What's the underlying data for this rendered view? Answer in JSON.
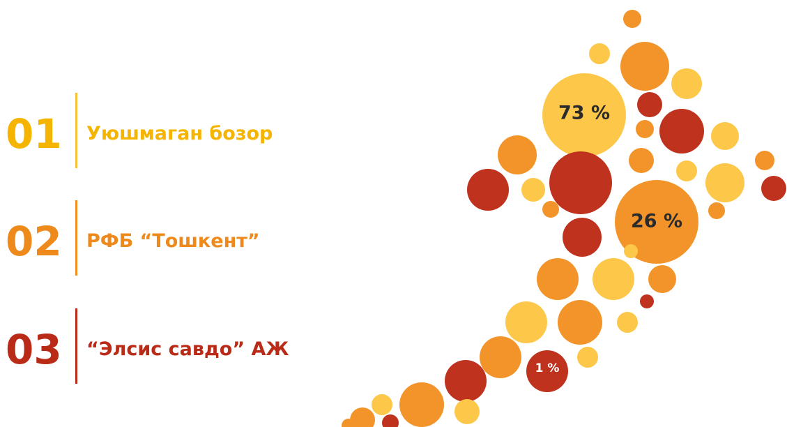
{
  "items": [
    {
      "number": "01",
      "label": "Уюшмаган бозор"
    },
    {
      "number": "02",
      "label": "РФБ “Тошкент”"
    },
    {
      "number": "03",
      "label": "“Элсис савдо” АЖ"
    }
  ],
  "bubbles": [
    {
      "label": "73 %"
    },
    {
      "label": "26 %"
    },
    {
      "label": "1 %"
    }
  ]
}
